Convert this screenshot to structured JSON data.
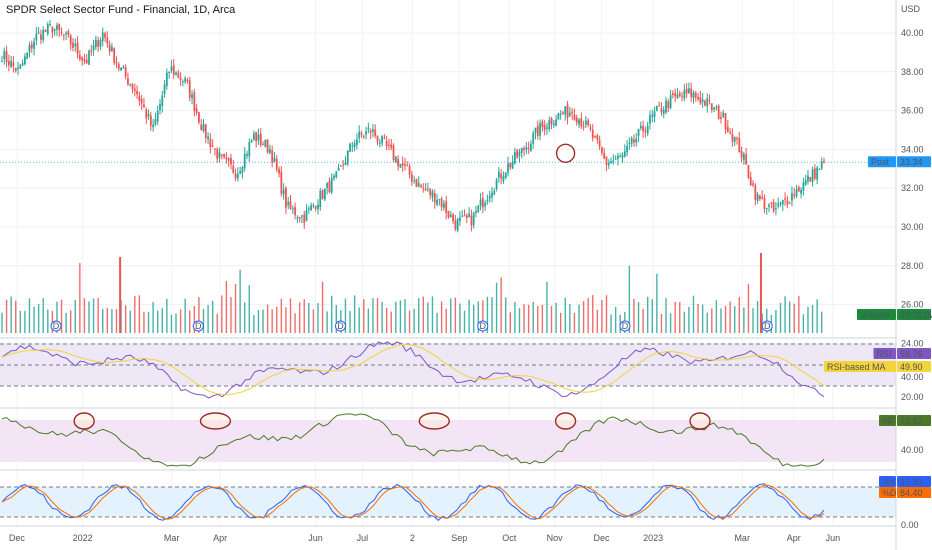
{
  "title": "SPDR Select Sector Fund - Financial, 1D, Arca",
  "currency": "USD",
  "colors": {
    "up": "#26a69a",
    "down": "#ef5350",
    "price_marker": "#2196f3",
    "volume_tag": "#1b8a3c",
    "rsi_line": "#7e57c2",
    "rsi_ma": "#f5d33b",
    "mf_line": "#4a7a27",
    "k_line": "#2962ff",
    "d_line": "#ff6d00",
    "highlight_circle": "#9c2b2b",
    "dividend_marker": "#2962ff",
    "rsi_band": "#ede7f6",
    "mf_band": "#f3e5f5",
    "stoch_band": "#e3f2fd"
  },
  "x_axis_labels": [
    "Dec",
    "2022",
    "Mar",
    "Apr",
    "Jun",
    "Jul",
    "2",
    "Sep",
    "Oct",
    "Nov",
    "Dec",
    "2023",
    "Mar",
    "Apr",
    "Jun"
  ],
  "price_axis_labels": [
    "40.00",
    "38.00",
    "36.00",
    "34.00",
    "32.00",
    "30.00",
    "28.00",
    "26.00",
    "24.00"
  ],
  "rsi_axis_labels": [
    "40.00",
    "20.00"
  ],
  "mf_axis_labels": [
    "40.00"
  ],
  "stoch_axis_labels": [
    "0.00"
  ],
  "tags": {
    "post": {
      "label": "Post",
      "value": "33.34"
    },
    "volume": {
      "label": "Volume",
      "value": "39.261M"
    },
    "rsi": {
      "label": "RSI",
      "value": "58.76"
    },
    "rsi_ma": {
      "label": "RSI-based MA",
      "value": "49.90"
    },
    "mf": {
      "label": "MF",
      "value": "79.92"
    },
    "k": {
      "label": "%K",
      "value": "92.33"
    },
    "d": {
      "label": "%D",
      "value": "84.40"
    }
  },
  "dividend_label": "D",
  "chart_data": [
    {
      "type": "candlestick",
      "title": "SPDR Select Sector Fund - Financial, 1D, Arca",
      "y_unit": "USD",
      "ylim": [
        29.0,
        41.2
      ],
      "x": [
        "2021-11-22",
        "2022-01-03",
        "2022-03-01",
        "2022-04-01",
        "2022-06-01",
        "2022-07-01",
        "2022-08-02",
        "2022-09-01",
        "2022-10-03",
        "2022-11-01",
        "2022-12-01",
        "2023-01-03",
        "2023-03-01",
        "2023-04-03",
        "2023-04-28"
      ],
      "close_path": [
        38.9,
        38.0,
        39.8,
        40.3,
        39.6,
        38.5,
        40.0,
        38.2,
        37.0,
        35.0,
        38.2,
        37.4,
        35.0,
        33.5,
        32.8,
        34.7,
        34.0,
        31.0,
        30.5,
        31.6,
        32.6,
        34.5,
        35.0,
        34.0,
        33.0,
        32.0,
        31.5,
        30.2,
        30.4,
        31.8,
        33.0,
        33.9,
        35.0,
        35.7,
        36.0,
        35.0,
        33.3,
        33.6,
        34.8,
        35.9,
        36.6,
        36.9,
        36.4,
        35.6,
        34.0,
        31.5,
        30.8,
        31.6,
        32.4,
        33.3
      ],
      "last_close": 33.34
    },
    {
      "type": "bar",
      "name": "Volume",
      "last_value_millions": 39.261,
      "spikes": [
        {
          "x": "2023-03-13",
          "relative_height": 1.0
        },
        {
          "x": "2022-01-27",
          "relative_height": 0.95
        }
      ],
      "dividends_x": [
        "2021-12-17",
        "2022-03-18",
        "2022-06-17",
        "2022-09-16",
        "2022-12-16",
        "2023-03-17"
      ]
    },
    {
      "type": "line",
      "name": "RSI",
      "series": [
        {
          "name": "RSI",
          "last": 58.76
        },
        {
          "name": "RSI-based MA",
          "last": 49.9
        }
      ],
      "bands": [
        30,
        50,
        70
      ]
    },
    {
      "type": "line",
      "name": "MF",
      "last": 79.92,
      "highlighted_peaks_x": [
        "2022-01-04",
        "2022-03-29",
        "2022-08-16",
        "2022-11-08",
        "2023-02-02"
      ]
    },
    {
      "type": "line",
      "name": "Stochastic",
      "series": [
        {
          "name": "%K",
          "last": 92.33
        },
        {
          "name": "%D",
          "last": 84.4
        }
      ],
      "bands": [
        20,
        80
      ]
    }
  ]
}
